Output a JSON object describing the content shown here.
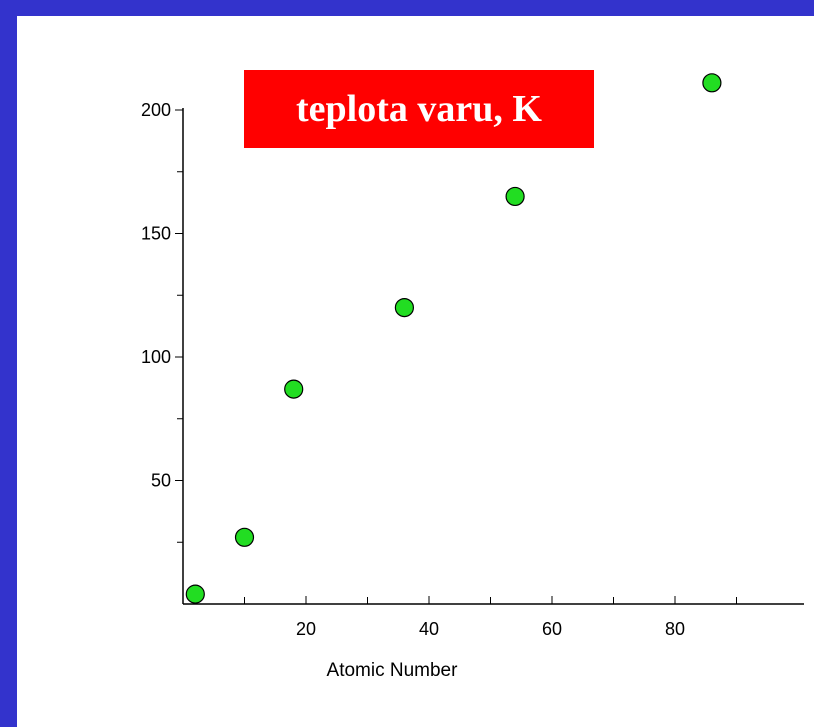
{
  "colors": {
    "frame": "#3333cc",
    "panel": "#ffffff",
    "title_bg": "#ff0000",
    "title_text": "#ffffff",
    "marker_fill": "#22dd22",
    "marker_stroke": "#000000"
  },
  "chart_data": {
    "type": "scatter",
    "title": "teplota varu, K",
    "xlabel": "Atomic Number",
    "ylabel": "",
    "xlim": [
      0,
      100
    ],
    "ylim": [
      0,
      200
    ],
    "x_ticks": [
      20,
      40,
      60,
      80
    ],
    "y_ticks": [
      50,
      100,
      150,
      200
    ],
    "x_minor_ticks": [
      10,
      30,
      50,
      70,
      90
    ],
    "y_minor_ticks": [
      25,
      75,
      125,
      175
    ],
    "grid": false,
    "legend": "none",
    "series": [
      {
        "x": [
          2,
          10,
          18,
          36,
          54,
          86
        ],
        "y": [
          4,
          27,
          87,
          120,
          165,
          211
        ]
      }
    ]
  }
}
